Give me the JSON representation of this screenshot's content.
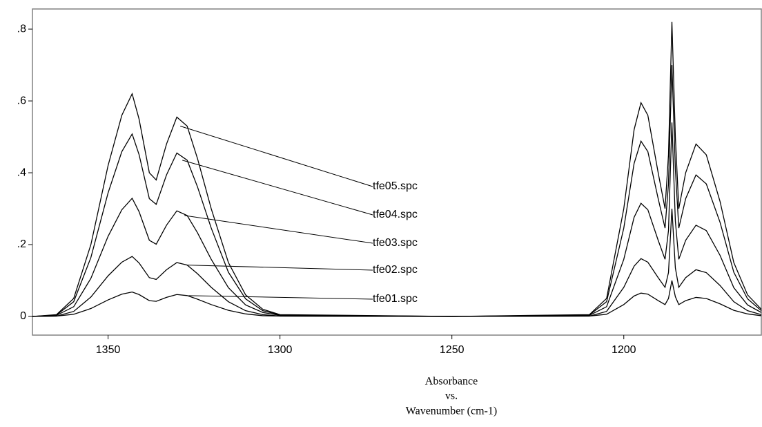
{
  "chart_data": {
    "type": "line",
    "xlabel": [
      "Absorbance",
      "vs.",
      "Wavenumber (cm-1)"
    ],
    "x": [
      1372,
      1365,
      1360,
      1355,
      1350,
      1346,
      1343,
      1341,
      1338,
      1336,
      1333,
      1330,
      1327,
      1324,
      1320,
      1315,
      1310,
      1305,
      1300,
      1250,
      1210,
      1205,
      1200,
      1197,
      1195,
      1193,
      1190,
      1188,
      1187,
      1186,
      1185,
      1184,
      1182,
      1179,
      1176,
      1172,
      1168,
      1164,
      1160
    ],
    "series": [
      {
        "name": "tfe05.spc",
        "color": "#000000",
        "values": [
          0,
          0.005,
          0.05,
          0.2,
          0.42,
          0.56,
          0.62,
          0.55,
          0.4,
          0.38,
          0.48,
          0.555,
          0.53,
          0.44,
          0.3,
          0.15,
          0.06,
          0.02,
          0.005,
          0,
          0.005,
          0.05,
          0.3,
          0.52,
          0.595,
          0.56,
          0.4,
          0.3,
          0.45,
          0.82,
          0.5,
          0.3,
          0.4,
          0.48,
          0.45,
          0.32,
          0.15,
          0.06,
          0.02
        ]
      },
      {
        "name": "tfe04.spc",
        "color": "#000000",
        "values": [
          0,
          0.004,
          0.041,
          0.164,
          0.344,
          0.459,
          0.508,
          0.451,
          0.328,
          0.312,
          0.394,
          0.455,
          0.435,
          0.361,
          0.246,
          0.123,
          0.049,
          0.016,
          0.004,
          0,
          0.004,
          0.041,
          0.246,
          0.426,
          0.488,
          0.459,
          0.328,
          0.246,
          0.369,
          0.7,
          0.41,
          0.246,
          0.328,
          0.394,
          0.369,
          0.262,
          0.123,
          0.049,
          0.016
        ]
      },
      {
        "name": "tfe03.spc",
        "color": "#000000",
        "values": [
          0,
          0.003,
          0.027,
          0.106,
          0.223,
          0.297,
          0.329,
          0.292,
          0.212,
          0.201,
          0.254,
          0.294,
          0.281,
          0.233,
          0.159,
          0.08,
          0.032,
          0.011,
          0.003,
          0,
          0.003,
          0.027,
          0.159,
          0.276,
          0.315,
          0.297,
          0.212,
          0.159,
          0.239,
          0.54,
          0.265,
          0.159,
          0.212,
          0.254,
          0.239,
          0.17,
          0.08,
          0.032,
          0.011
        ]
      },
      {
        "name": "tfe02.spc",
        "color": "#000000",
        "values": [
          0,
          0.001,
          0.014,
          0.054,
          0.113,
          0.151,
          0.167,
          0.149,
          0.108,
          0.103,
          0.13,
          0.15,
          0.143,
          0.119,
          0.081,
          0.041,
          0.016,
          0.005,
          0.001,
          0,
          0.001,
          0.014,
          0.081,
          0.14,
          0.161,
          0.151,
          0.108,
          0.081,
          0.122,
          0.3,
          0.135,
          0.081,
          0.108,
          0.13,
          0.122,
          0.086,
          0.041,
          0.016,
          0.005
        ]
      },
      {
        "name": "tfe01.spc",
        "color": "#000000",
        "values": [
          0,
          0.001,
          0.006,
          0.022,
          0.046,
          0.062,
          0.068,
          0.061,
          0.044,
          0.042,
          0.053,
          0.061,
          0.058,
          0.048,
          0.033,
          0.017,
          0.007,
          0.002,
          0.001,
          0,
          0.001,
          0.006,
          0.033,
          0.057,
          0.065,
          0.062,
          0.044,
          0.033,
          0.05,
          0.1,
          0.055,
          0.033,
          0.044,
          0.053,
          0.05,
          0.035,
          0.017,
          0.007,
          0.002
        ]
      }
    ],
    "xlim": [
      1372,
      1160
    ],
    "xticks": [
      1350,
      1300,
      1250,
      1200
    ],
    "ylim": [
      -0.052,
      0.856
    ],
    "yticks": [
      0,
      {
        "value": 0.2,
        "label": ".2"
      },
      {
        "value": 0.4,
        "label": ".4"
      },
      {
        "value": 0.6,
        "label": ".6"
      },
      {
        "value": 0.8,
        "label": ".8"
      }
    ],
    "grid": false
  }
}
